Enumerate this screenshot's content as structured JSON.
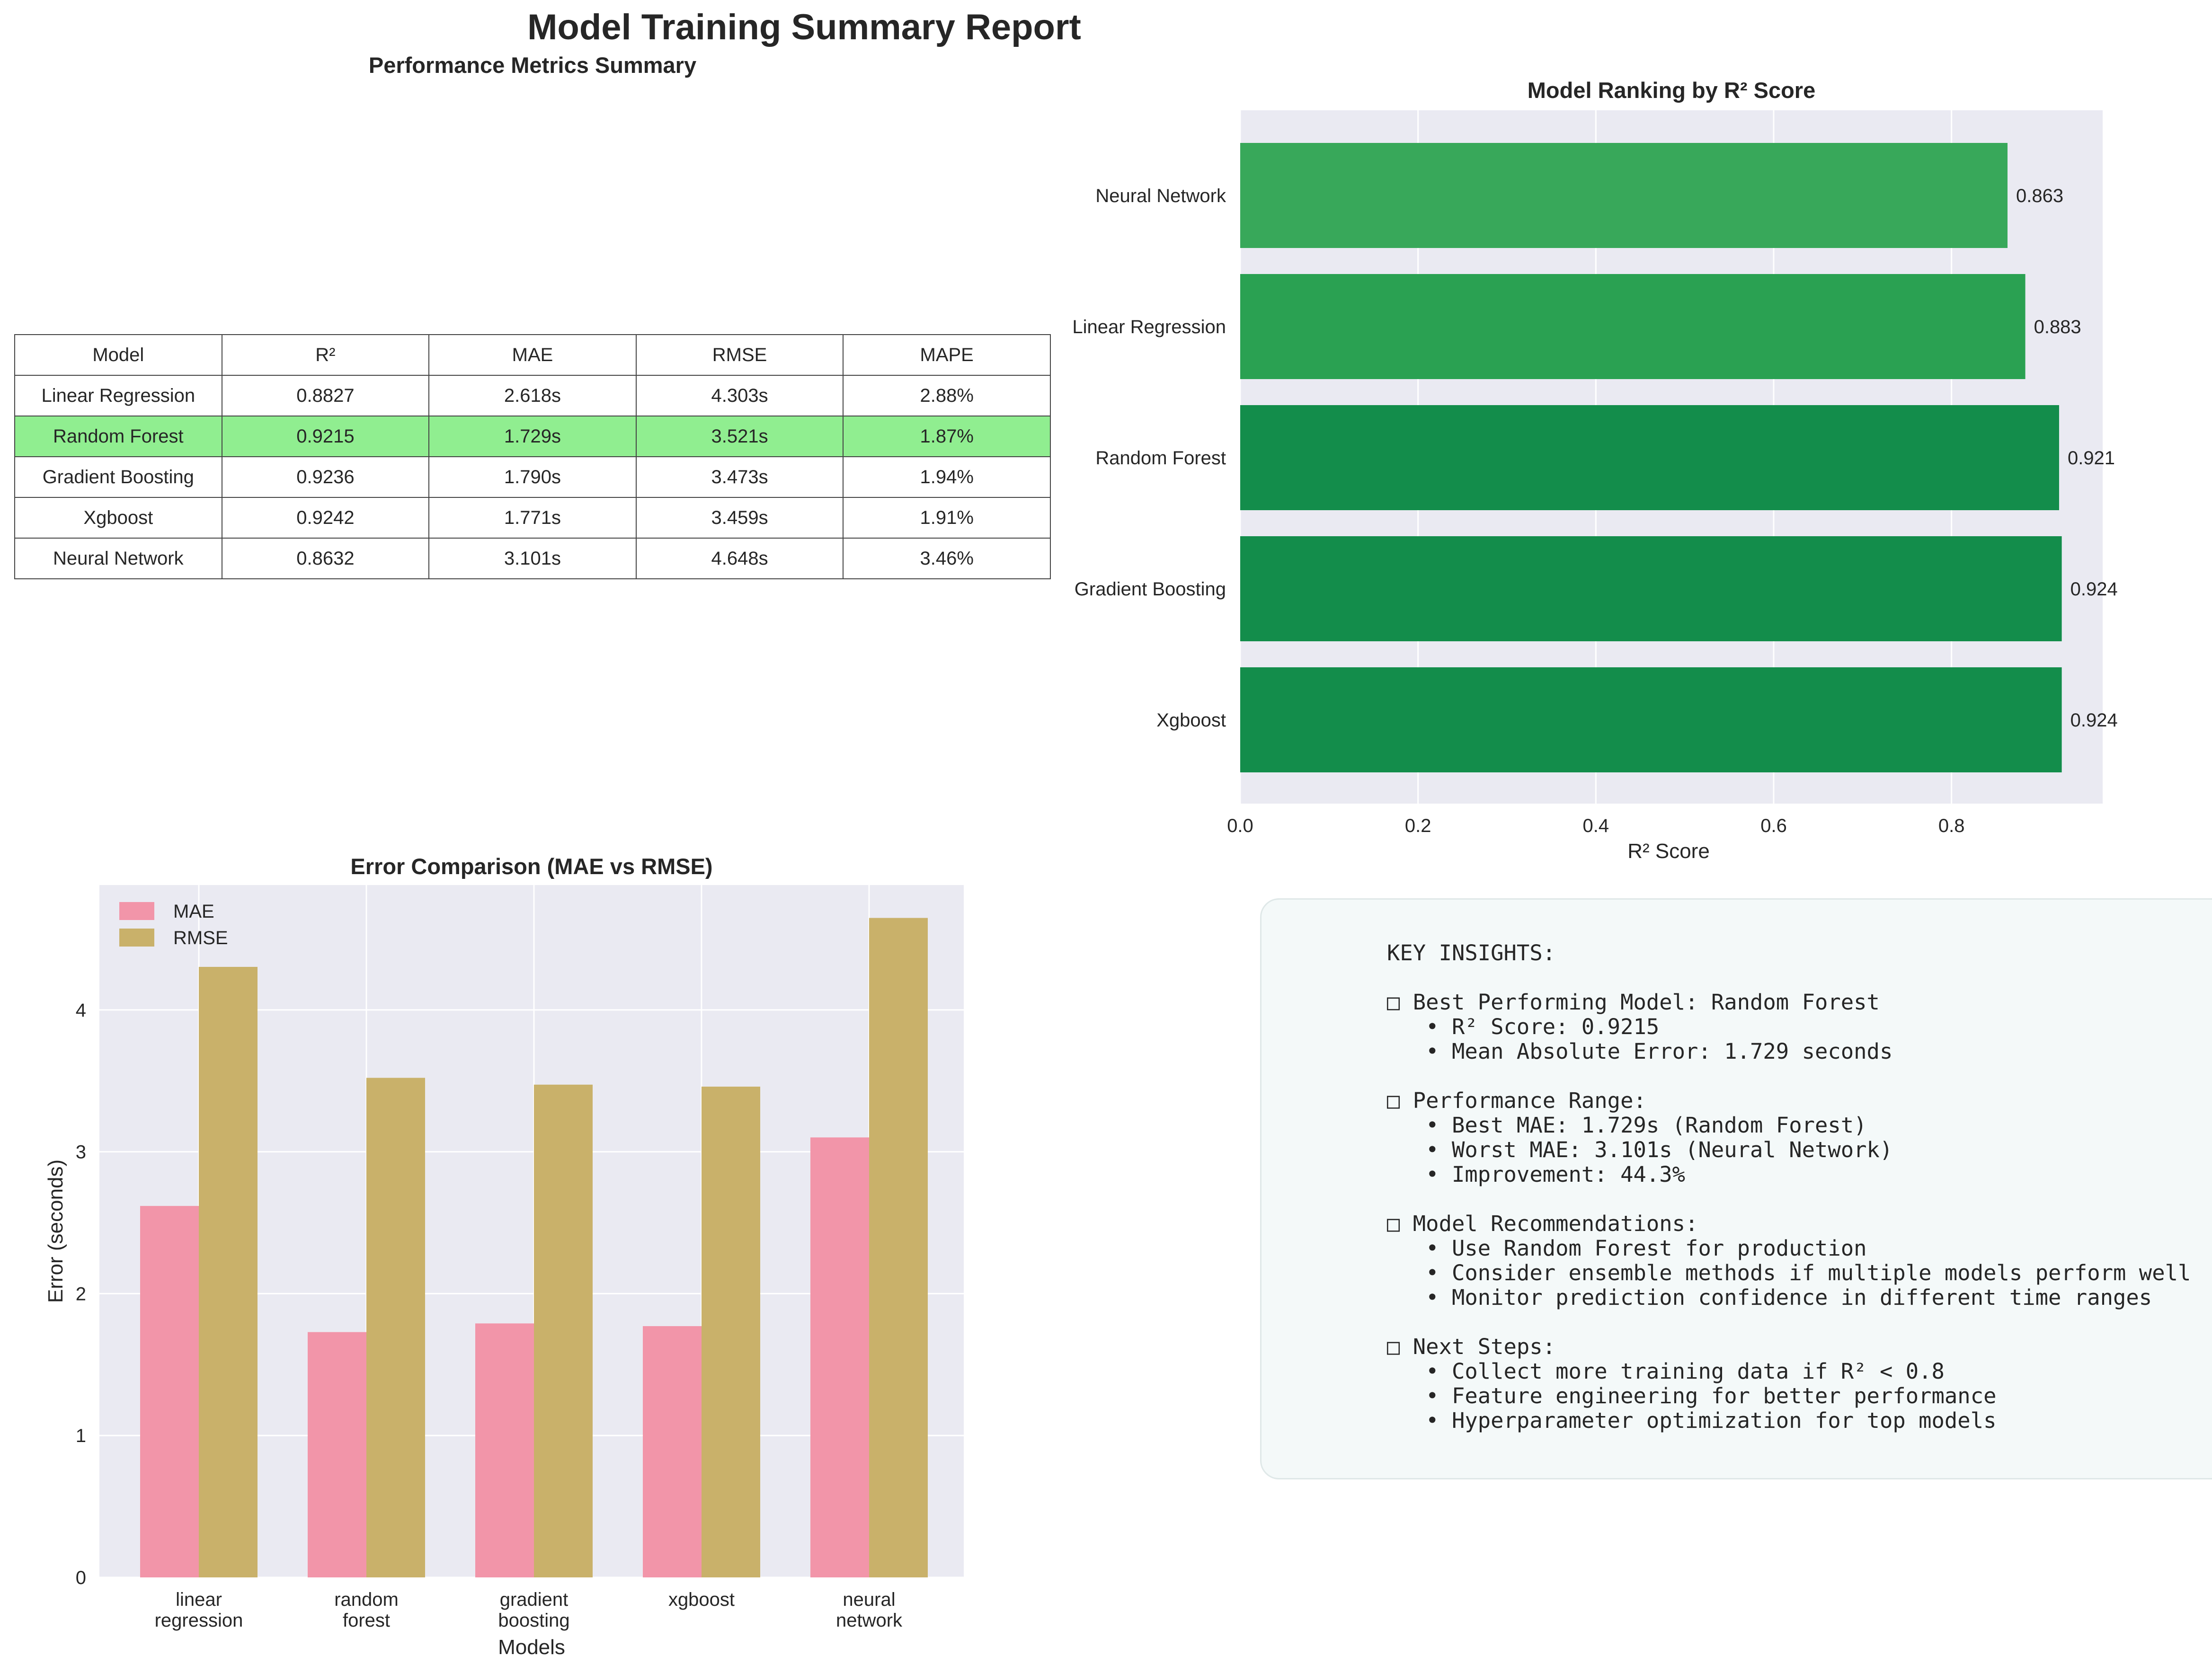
{
  "title": "Model Training Summary Report",
  "colors": {
    "best_row": "#90ee90",
    "mae": "#f295a9",
    "rmse": "#c9b16a",
    "rank_bar_best": "#138d4b",
    "rank_bar_mid": "#2aa152",
    "rank_bar_low": "#38a85a"
  },
  "table": {
    "title": "Performance Metrics Summary",
    "headers": [
      "Model",
      "R²",
      "MAE",
      "RMSE",
      "MAPE"
    ],
    "rows": [
      [
        "Linear Regression",
        "0.8827",
        "2.618s",
        "4.303s",
        "2.88%"
      ],
      [
        "Random Forest",
        "0.9215",
        "1.729s",
        "3.521s",
        "1.87%"
      ],
      [
        "Gradient Boosting",
        "0.9236",
        "1.790s",
        "3.473s",
        "1.94%"
      ],
      [
        "Xgboost",
        "0.9242",
        "1.771s",
        "3.459s",
        "1.91%"
      ],
      [
        "Neural Network",
        "0.8632",
        "3.101s",
        "4.648s",
        "3.46%"
      ]
    ],
    "highlight_row": 1
  },
  "chart_data": [
    {
      "type": "bar",
      "orientation": "horizontal",
      "title": "Model Ranking by R² Score",
      "xlabel": "R² Score",
      "ylabel": "",
      "categories": [
        "Neural Network",
        "Linear Regression",
        "Random Forest",
        "Gradient Boosting",
        "Xgboost"
      ],
      "values": [
        0.863,
        0.883,
        0.921,
        0.924,
        0.924
      ],
      "data_labels": [
        "0.863",
        "0.883",
        "0.921",
        "0.924",
        "0.924"
      ],
      "x_ticks": [
        "0.0",
        "0.2",
        "0.4",
        "0.6",
        "0.8"
      ],
      "xlim": [
        0,
        0.97
      ],
      "grid": true
    },
    {
      "type": "bar",
      "title": "Error Comparison (MAE vs RMSE)",
      "xlabel": "Models",
      "ylabel": "Error (seconds)",
      "categories": [
        [
          "linear",
          "regression"
        ],
        [
          "random",
          "forest"
        ],
        [
          "gradient",
          "boosting"
        ],
        [
          "xgboost"
        ],
        [
          "neural",
          "network"
        ]
      ],
      "series": [
        {
          "name": "MAE",
          "values": [
            2.618,
            1.729,
            1.79,
            1.771,
            3.101
          ]
        },
        {
          "name": "RMSE",
          "values": [
            4.303,
            3.521,
            3.473,
            3.459,
            4.648
          ]
        }
      ],
      "y_ticks": [
        "0",
        "1",
        "2",
        "3",
        "4"
      ],
      "ylim": [
        0,
        4.88
      ],
      "legend": "top-left",
      "grid": true
    }
  ],
  "insights": {
    "lines": [
      "KEY INSIGHTS:",
      "",
      "□ Best Performing Model: Random Forest",
      "   • R² Score: 0.9215",
      "   • Mean Absolute Error: 1.729 seconds",
      "",
      "□ Performance Range:",
      "   • Best MAE: 1.729s (Random Forest)",
      "   • Worst MAE: 3.101s (Neural Network)",
      "   • Improvement: 44.3%",
      "",
      "□ Model Recommendations:",
      "   • Use Random Forest for production",
      "   • Consider ensemble methods if multiple models perform well",
      "   • Monitor prediction confidence in different time ranges",
      "",
      "□ Next Steps:",
      "   • Collect more training data if R² < 0.8",
      "   • Feature engineering for better performance",
      "   • Hyperparameter optimization for top models"
    ]
  }
}
